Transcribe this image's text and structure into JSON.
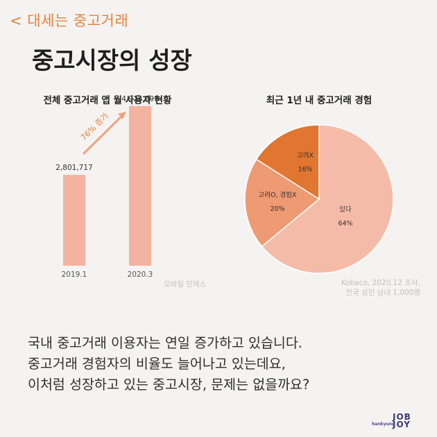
{
  "header": {
    "category": "< 대세는 중고거래",
    "title": "중고시장의 성장"
  },
  "chart_data": [
    {
      "type": "bar",
      "title": "전체 중고거래 앱 월 사용자 현황",
      "categories": [
        "2019.1",
        "2020.3"
      ],
      "values": [
        2801717,
        4925399
      ],
      "value_labels": [
        "2,801,717",
        "4,925,399"
      ],
      "ylim": [
        0,
        5200000
      ],
      "annotation": "76% 증가",
      "source": "모바일 인덱스",
      "color": "#f4b3a0",
      "grid": false
    },
    {
      "type": "pie",
      "title": "최근 1년 내 중고거래 경험",
      "slices": [
        {
          "label": "있다",
          "pct_label": "64%",
          "value": 64,
          "color": "#f4bca8"
        },
        {
          "label": "고려O, 경험X",
          "pct_label": "20%",
          "value": 20,
          "color": "#ee9a72"
        },
        {
          "label": "고려X",
          "pct_label": "16%",
          "value": 16,
          "color": "#e17630"
        }
      ],
      "source_lines": [
        "Kobaco, 2020.12 조사,",
        "전국 성인 남녀 1,000명"
      ]
    }
  ],
  "body": {
    "lines": [
      "국내 중고거래 이용자는 연일 증가하고 있습니다.",
      "중고거래 경험자의 비율도 늘어나고 있는데요,",
      "이처럼 성장하고 있는 중고시장, 문제는 없을까요?"
    ]
  },
  "logo": {
    "small": "hankyung",
    "line1": "JOB",
    "line2": "JOY"
  },
  "colors": {
    "accent": "#e8813a",
    "background": "#f4f3f1"
  }
}
